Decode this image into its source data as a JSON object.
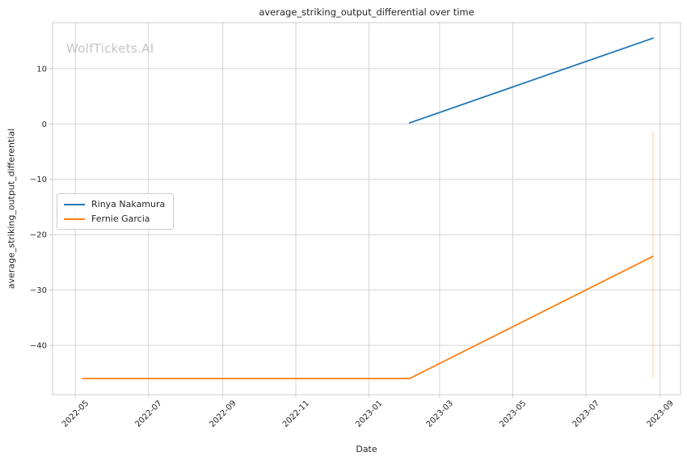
{
  "figure": {
    "title": "average_striking_output_differential over time",
    "watermark": "WolfTickets.AI",
    "xlabel": "Date",
    "ylabel": "average_striking_output_differential"
  },
  "legend": {
    "items": [
      {
        "label": "Rinya Nakamura",
        "color": "#1f77b4"
      },
      {
        "label": "Fernie Garcia",
        "color": "#ff7f0e"
      }
    ]
  },
  "colors": {
    "series_blue": "#1f77b4",
    "series_orange": "#ff7f0e",
    "error_bar": "rgba(255,127,14,0.35)",
    "grid": "#d4d4d4",
    "axes_edge": "#cccccc",
    "text": "#262626",
    "watermark": "#c4c4c4",
    "background": "#ffffff"
  },
  "chart_data": {
    "type": "line",
    "title": "average_striking_output_differential over time",
    "xlabel": "Date",
    "ylabel": "average_striking_output_differential",
    "grid": true,
    "legend_position": "center-left",
    "x_domain": [
      "2022-04-12",
      "2023-09-18"
    ],
    "ylim": [
      -48.9,
      18.3
    ],
    "x_ticks": [
      "2022-05",
      "2022-07",
      "2022-09",
      "2022-11",
      "2023-01",
      "2023-03",
      "2023-05",
      "2023-07",
      "2023-09"
    ],
    "y_ticks": [
      10,
      0,
      -10,
      -20,
      -30,
      -40
    ],
    "series": [
      {
        "name": "Rinya Nakamura",
        "color": "#1f77b4",
        "points": [
          [
            "2023-02-04",
            0.2
          ],
          [
            "2023-08-26",
            15.5
          ]
        ]
      },
      {
        "name": "Fernie Garcia",
        "color": "#ff7f0e",
        "points": [
          [
            "2022-05-07",
            -46.0
          ],
          [
            "2023-02-04",
            -46.0
          ],
          [
            "2023-08-26",
            -23.9
          ]
        ]
      }
    ],
    "error_bar": {
      "series": "Fernie Garcia",
      "x": "2023-08-26",
      "ymin": -45.9,
      "ymax": -1.3
    }
  }
}
